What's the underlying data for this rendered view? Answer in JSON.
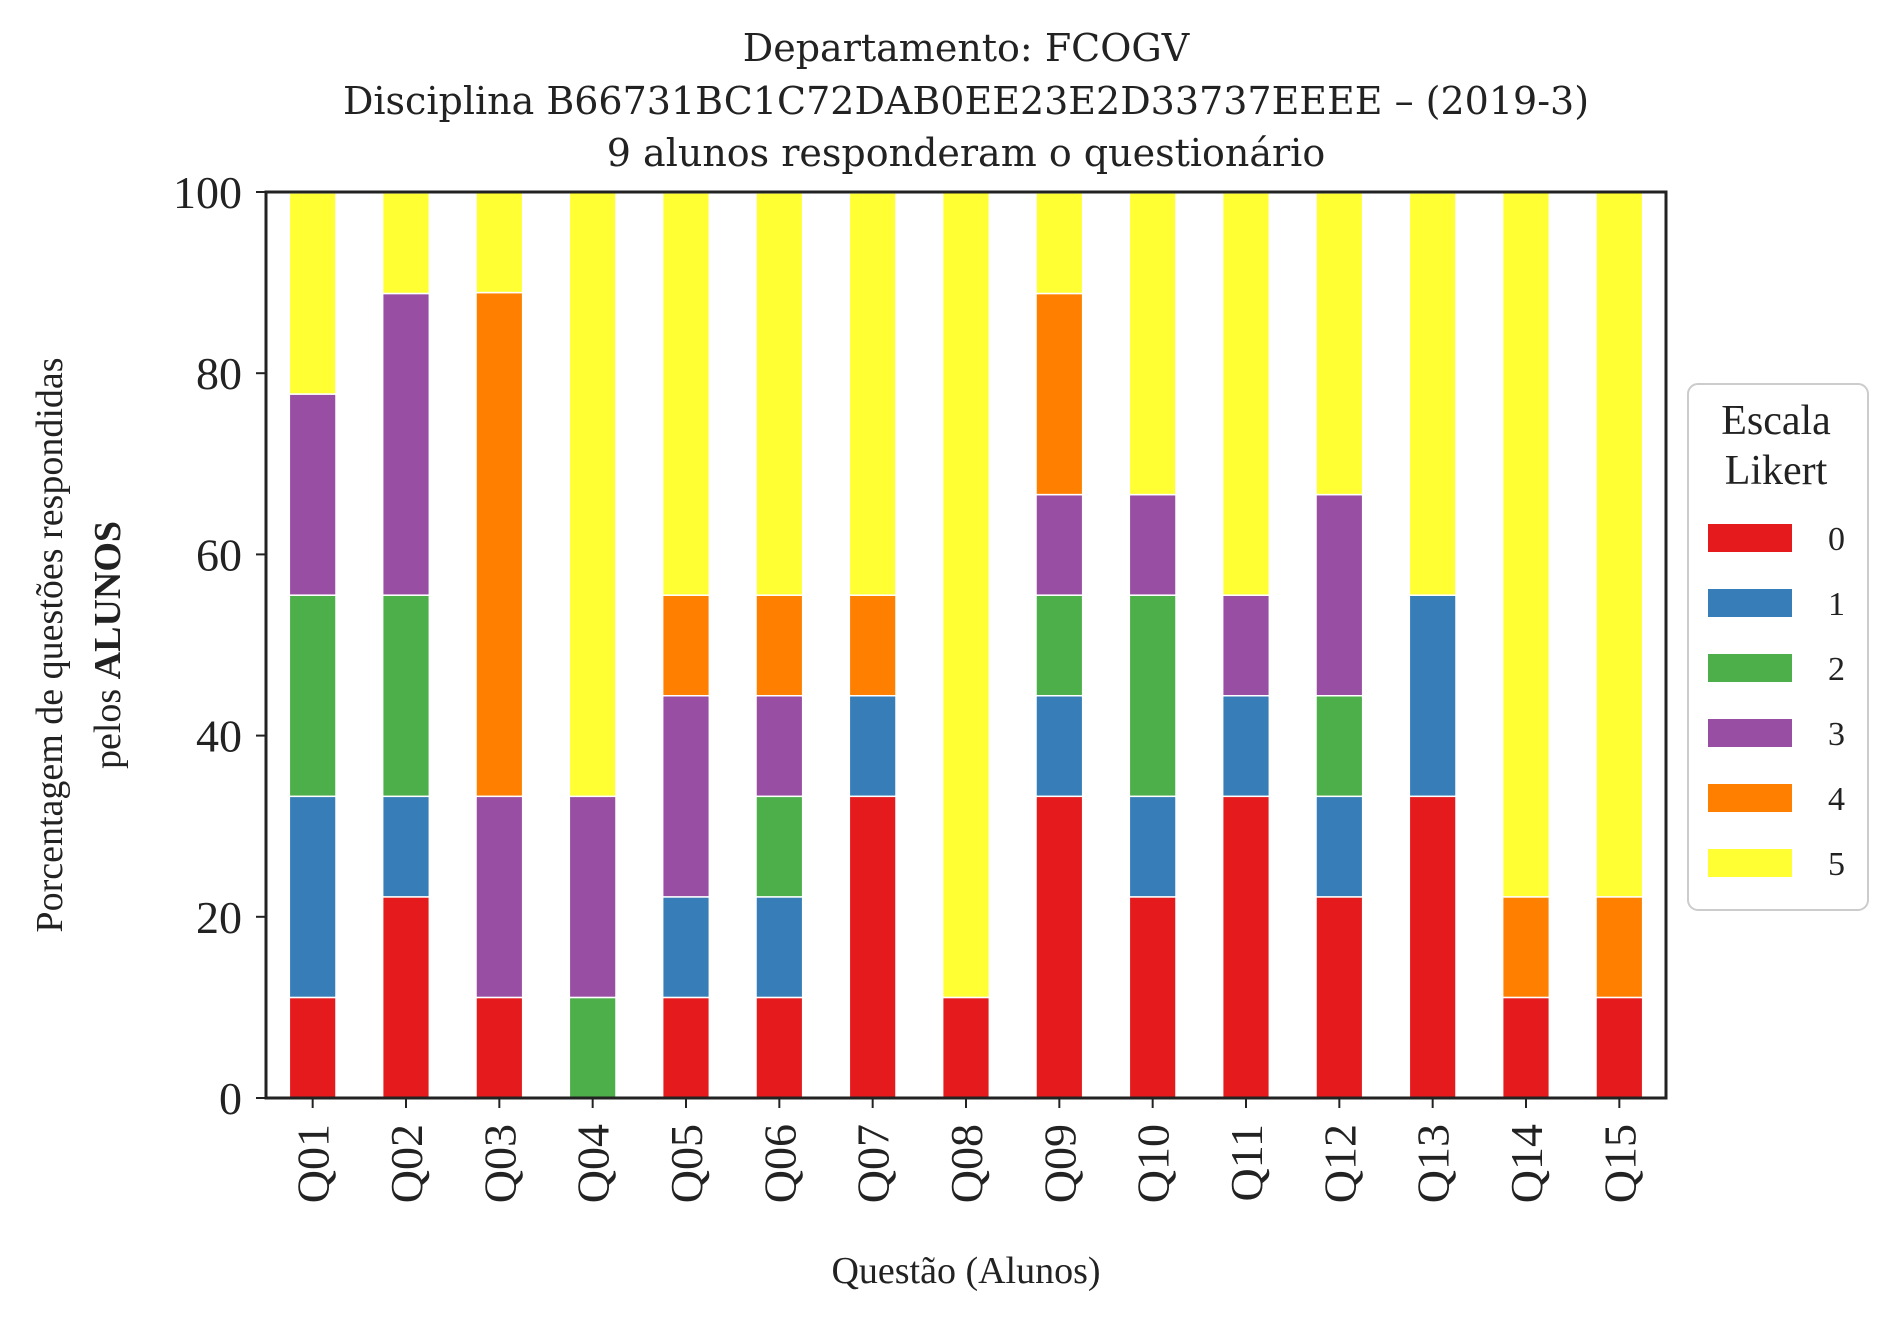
{
  "chart_data": {
    "type": "bar",
    "stacked": true,
    "title_lines": [
      "Departamento: FCOGV",
      "Disciplina B66731BC1C72DAB0EE23E2D33737EEEE – (2019-3)",
      "9 alunos responderam o questionário"
    ],
    "xlabel": "Questão (Alunos)",
    "ylabel_line1": "Porcentagem de questões respondidas",
    "ylabel_line2_prefix": "pelos ",
    "ylabel_line2_bold": "ALUNOS",
    "ylim": [
      0,
      100
    ],
    "yticks": [
      0,
      20,
      40,
      60,
      80,
      100
    ],
    "grid": false,
    "legend": {
      "title_lines": [
        "Escala",
        "Likert"
      ],
      "placement": "right"
    },
    "categories": [
      "Q01",
      "Q02",
      "Q03",
      "Q04",
      "Q05",
      "Q06",
      "Q07",
      "Q08",
      "Q09",
      "Q10",
      "Q11",
      "Q12",
      "Q13",
      "Q14",
      "Q15"
    ],
    "series": [
      {
        "name": "0",
        "color": "#e41a1c",
        "values": [
          11.1,
          22.2,
          11.1,
          0,
          11.1,
          11.1,
          33.3,
          11.1,
          33.3,
          22.2,
          33.3,
          22.2,
          33.3,
          11.1,
          11.1
        ]
      },
      {
        "name": "1",
        "color": "#377eb8",
        "values": [
          22.2,
          11.1,
          0,
          0,
          11.1,
          11.1,
          11.1,
          0,
          11.1,
          11.1,
          11.1,
          11.1,
          22.2,
          0,
          0
        ]
      },
      {
        "name": "2",
        "color": "#4daf4a",
        "values": [
          22.2,
          22.2,
          0,
          11.1,
          0,
          11.1,
          0,
          0,
          11.1,
          22.2,
          0,
          11.1,
          0,
          0,
          0
        ]
      },
      {
        "name": "3",
        "color": "#984ea3",
        "values": [
          22.2,
          33.3,
          22.2,
          22.2,
          22.2,
          11.1,
          0,
          0,
          11.1,
          11.1,
          11.1,
          22.2,
          0,
          0,
          0
        ]
      },
      {
        "name": "4",
        "color": "#ff7f00",
        "values": [
          0,
          0,
          55.6,
          0,
          11.1,
          11.1,
          11.1,
          0,
          22.2,
          0,
          0,
          0,
          0,
          11.1,
          11.1
        ]
      },
      {
        "name": "5",
        "color": "#ffff33",
        "values": [
          22.2,
          11.1,
          11.1,
          66.7,
          44.4,
          44.4,
          44.4,
          88.9,
          11.1,
          33.3,
          44.4,
          33.3,
          44.4,
          77.8,
          77.8
        ]
      }
    ]
  }
}
